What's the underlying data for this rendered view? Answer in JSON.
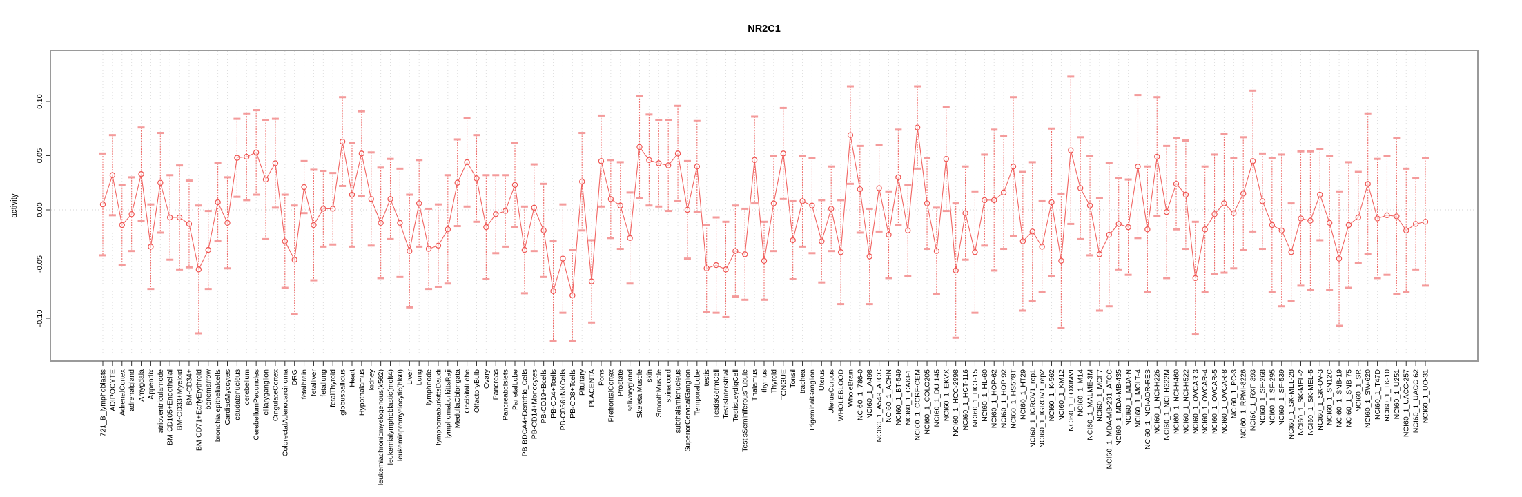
{
  "chart_data": {
    "type": "line",
    "subtype": "point-errorbar-profile",
    "title": "NR2C1",
    "ylabel": "activity",
    "xlabel": "",
    "ylim": [
      -0.139,
      0.148
    ],
    "yticks": [
      -0.1,
      -0.05,
      0.0,
      0.05,
      0.1
    ],
    "ytick_labels": [
      "-0.10",
      "-0.05",
      "0.00",
      "0.05",
      "0.10"
    ],
    "grid": "vertical dotted gridline per category; dotted horizontal line at y=0; gray plot box",
    "legend": "none",
    "colors": {
      "series": "#ef5350",
      "point": "#ef5350",
      "errorbar_stem": "#ef5350",
      "errorbar_cap": "#f49b9b",
      "gridline": "#dedede",
      "zero_line": "#d6d6d6",
      "box_border": "#9a9a9a",
      "tick": "#333333",
      "text": "#000000"
    },
    "categories": [
      "721_B_lymphoblasts",
      "ADIPOCYTE",
      "AdrenalCortex",
      "adrenalgland",
      "Amygdala",
      "Appendix",
      "atrioventricularnode",
      "BM-CD105+Endothelial",
      "BM-CD33+Myeloid",
      "BM-CD34+",
      "BM-CD71+EarlyErythroid",
      "bonemarrow",
      "bronchialepithelialcells",
      "CardiacMyocytes",
      "caudatenucleus",
      "cerebellum",
      "CerebellumPeduncles",
      "ciliaryganglion",
      "CingulateCortex",
      "ColorectalAdenocarcinoma",
      "DRG",
      "fetalbrain",
      "fetalliver",
      "fetallung",
      "fetalThyroid",
      "globuspallidus",
      "Heart",
      "Hypothalamus",
      "kidney",
      "leukemiachronicmyelogenous(k562)",
      "leukemialymphoblastic(molt4)",
      "leukemiapromyelocytic(hl60)",
      "Liver",
      "Lung",
      "lymphnode",
      "lymphomaburkittsDaudi",
      "lymphomaburkittsRaji",
      "MedullaOblongata",
      "OccipitalLobe",
      "OlfactoryBulb",
      "Ovary",
      "Pancreas",
      "PancreaticIslets",
      "ParietalLobe",
      "PB-BDCA4+Dentritic_Cells",
      "PB-CD14+Monocytes",
      "PB-CD19+Bcells",
      "PB-CD4+Tcells",
      "PB-CD56+NKCells",
      "PB-CD8+Tcells",
      "Pituitary",
      "PLACENTA",
      "Pons",
      "PrefrontalCortex",
      "Prostate",
      "salivarygland",
      "SkeletalMuscle",
      "skin",
      "SmoothMuscle",
      "spinalcord",
      "subthalamicnucleus",
      "SuperiorCervicalGanglion",
      "TemporalLobe",
      "testis",
      "TestisGermCell",
      "TestisInterstitial",
      "TestisLeydigCell",
      "TestisSeminiferousTubule",
      "Thalamus",
      "thymus",
      "Thyroid",
      "TONGUE",
      "Tonsil",
      "trachea",
      "TrigeminalGanglion",
      "Uterus",
      "UterusCorpus",
      "WHOLEBLOOD",
      "WholeBrain",
      "NCI60_1_786-0",
      "NCI60_1_A498",
      "NCI60_1_A549_ATCC",
      "NCI60_1_ACHN",
      "NCI60_1_BT-549",
      "NCI60_1_CAKI-1",
      "NCI60_1_CCRF-CEM",
      "NCI60_1_COLO205",
      "NCI60_1_DU-145",
      "NCI60_1_EKVX",
      "NCI60_1_HCC-2998",
      "NCI60_1_HCT-116",
      "NCI60_1_HCT-15",
      "NCI60_1_HL-60",
      "NCI60_1_HOP-62",
      "NCI60_1_HOP-92",
      "NCI60_1_HS578T",
      "NCI60_1_HT29",
      "NCI60_1_IGROV1_rep1",
      "NCI60_1_IGROV1_rep2",
      "NCI60_1_K-562",
      "NCI60_1_KM12",
      "NCI60_1_LOXIMVI",
      "NCI60_1_M14",
      "NCI60_1_MALME-3M",
      "NCI60_1_MCF7",
      "NCI60_1_MDA-MB-231_ATCC",
      "NCI60_1_MDA-MB-435",
      "NCI60_1_MDA-N",
      "NCI60_1_MOLT-4",
      "NCI60_1_NCI-ADR-RES",
      "NCI60_1_NCI-H226",
      "NCI60_1_NCI-H322M",
      "NCI60_1_NCI-H460",
      "NCI60_1_NCI-H522",
      "NCI60_1_OVCAR-3",
      "NCI60_1_OVCAR-4",
      "NCI60_1_OVCAR-5",
      "NCI60_1_OVCAR-8",
      "NCI60_1_PC-3",
      "NCI60_1_RPMI-8226",
      "NCI60_1_RXF-393",
      "NCI60_1_SF-268",
      "NCI60_1_SF-295",
      "NCI60_1_SF-539",
      "NCI60_1_SK-MEL-28",
      "NCI60_1_SK-MEL-2",
      "NCI60_1_SK-MEL-5",
      "NCI60_1_SK-OV-3",
      "NCI60_1_SN12C",
      "NCI60_1_SNB-19",
      "NCI60_1_SNB-75",
      "NCI60_1_SR",
      "NCI60_1_SW-620",
      "NCI60_1_T47D",
      "NCI60_1_TK-10",
      "NCI60_1_U251",
      "NCI60_1_UACC-257",
      "NCI60_1_UACC-62",
      "NCI60_1_UO-31"
    ],
    "values": [
      0.005,
      0.032,
      -0.014,
      -0.004,
      0.033,
      -0.034,
      0.025,
      -0.007,
      -0.007,
      -0.013,
      -0.055,
      -0.037,
      0.007,
      -0.012,
      0.048,
      0.049,
      0.053,
      0.028,
      0.043,
      -0.029,
      -0.046,
      0.021,
      -0.014,
      0.001,
      0.001,
      0.063,
      0.014,
      0.052,
      0.01,
      -0.012,
      0.01,
      -0.012,
      -0.038,
      0.006,
      -0.036,
      -0.033,
      -0.018,
      0.025,
      0.044,
      0.029,
      -0.016,
      -0.004,
      -0.001,
      0.023,
      -0.037,
      0.002,
      -0.019,
      -0.075,
      -0.045,
      -0.079,
      0.026,
      -0.066,
      0.045,
      0.01,
      0.004,
      -0.026,
      0.058,
      0.046,
      0.043,
      0.041,
      0.052,
      0.0,
      0.04,
      -0.054,
      -0.051,
      -0.055,
      -0.038,
      -0.041,
      0.046,
      -0.047,
      0.006,
      0.052,
      -0.028,
      0.008,
      0.004,
      -0.029,
      0.001,
      -0.039,
      0.069,
      0.019,
      -0.043,
      0.02,
      -0.023,
      0.03,
      -0.019,
      0.076,
      0.006,
      -0.038,
      0.047,
      -0.056,
      -0.003,
      -0.039,
      0.009,
      0.009,
      0.016,
      0.04,
      -0.029,
      -0.02,
      -0.034,
      0.007,
      -0.047,
      0.055,
      0.02,
      0.004,
      -0.041,
      -0.023,
      -0.013,
      -0.016,
      0.04,
      -0.018,
      0.049,
      -0.002,
      0.024,
      0.014,
      -0.063,
      -0.018,
      -0.004,
      0.006,
      -0.003,
      0.015,
      0.045,
      0.008,
      -0.014,
      -0.019,
      -0.039,
      -0.008,
      -0.01,
      0.014,
      -0.012,
      -0.045,
      -0.014,
      -0.007,
      0.024,
      -0.008,
      -0.005,
      -0.006,
      -0.019,
      -0.013,
      -0.011
    ],
    "errors": [
      0.047,
      0.037,
      0.037,
      0.034,
      0.043,
      0.039,
      0.046,
      0.039,
      0.048,
      0.04,
      0.059,
      0.036,
      0.036,
      0.042,
      0.036,
      0.04,
      0.039,
      0.055,
      0.041,
      0.043,
      0.05,
      0.024,
      0.051,
      0.035,
      0.033,
      0.041,
      0.048,
      0.039,
      0.043,
      0.051,
      0.037,
      0.05,
      0.052,
      0.04,
      0.037,
      0.038,
      0.05,
      0.04,
      0.041,
      0.04,
      0.048,
      0.036,
      0.033,
      0.039,
      0.04,
      0.04,
      0.043,
      0.046,
      0.05,
      0.042,
      0.045,
      0.038,
      0.042,
      0.036,
      0.04,
      0.042,
      0.047,
      0.042,
      0.04,
      0.042,
      0.044,
      0.045,
      0.042,
      0.04,
      0.044,
      0.044,
      0.042,
      0.042,
      0.04,
      0.036,
      0.044,
      0.042,
      0.036,
      0.042,
      0.044,
      0.038,
      0.039,
      0.048,
      0.045,
      0.04,
      0.044,
      0.04,
      0.04,
      0.044,
      0.042,
      0.038,
      0.042,
      0.04,
      0.048,
      0.062,
      0.043,
      0.056,
      0.042,
      0.065,
      0.052,
      0.064,
      0.064,
      0.064,
      0.042,
      0.068,
      0.062,
      0.068,
      0.047,
      0.046,
      0.052,
      0.066,
      0.042,
      0.044,
      0.066,
      0.058,
      0.055,
      0.061,
      0.042,
      0.05,
      0.052,
      0.058,
      0.055,
      0.064,
      0.051,
      0.052,
      0.065,
      0.044,
      0.062,
      0.07,
      0.045,
      0.062,
      0.064,
      0.042,
      0.062,
      0.062,
      0.058,
      0.042,
      0.065,
      0.055,
      0.055,
      0.072,
      0.057,
      0.042,
      0.059
    ]
  }
}
